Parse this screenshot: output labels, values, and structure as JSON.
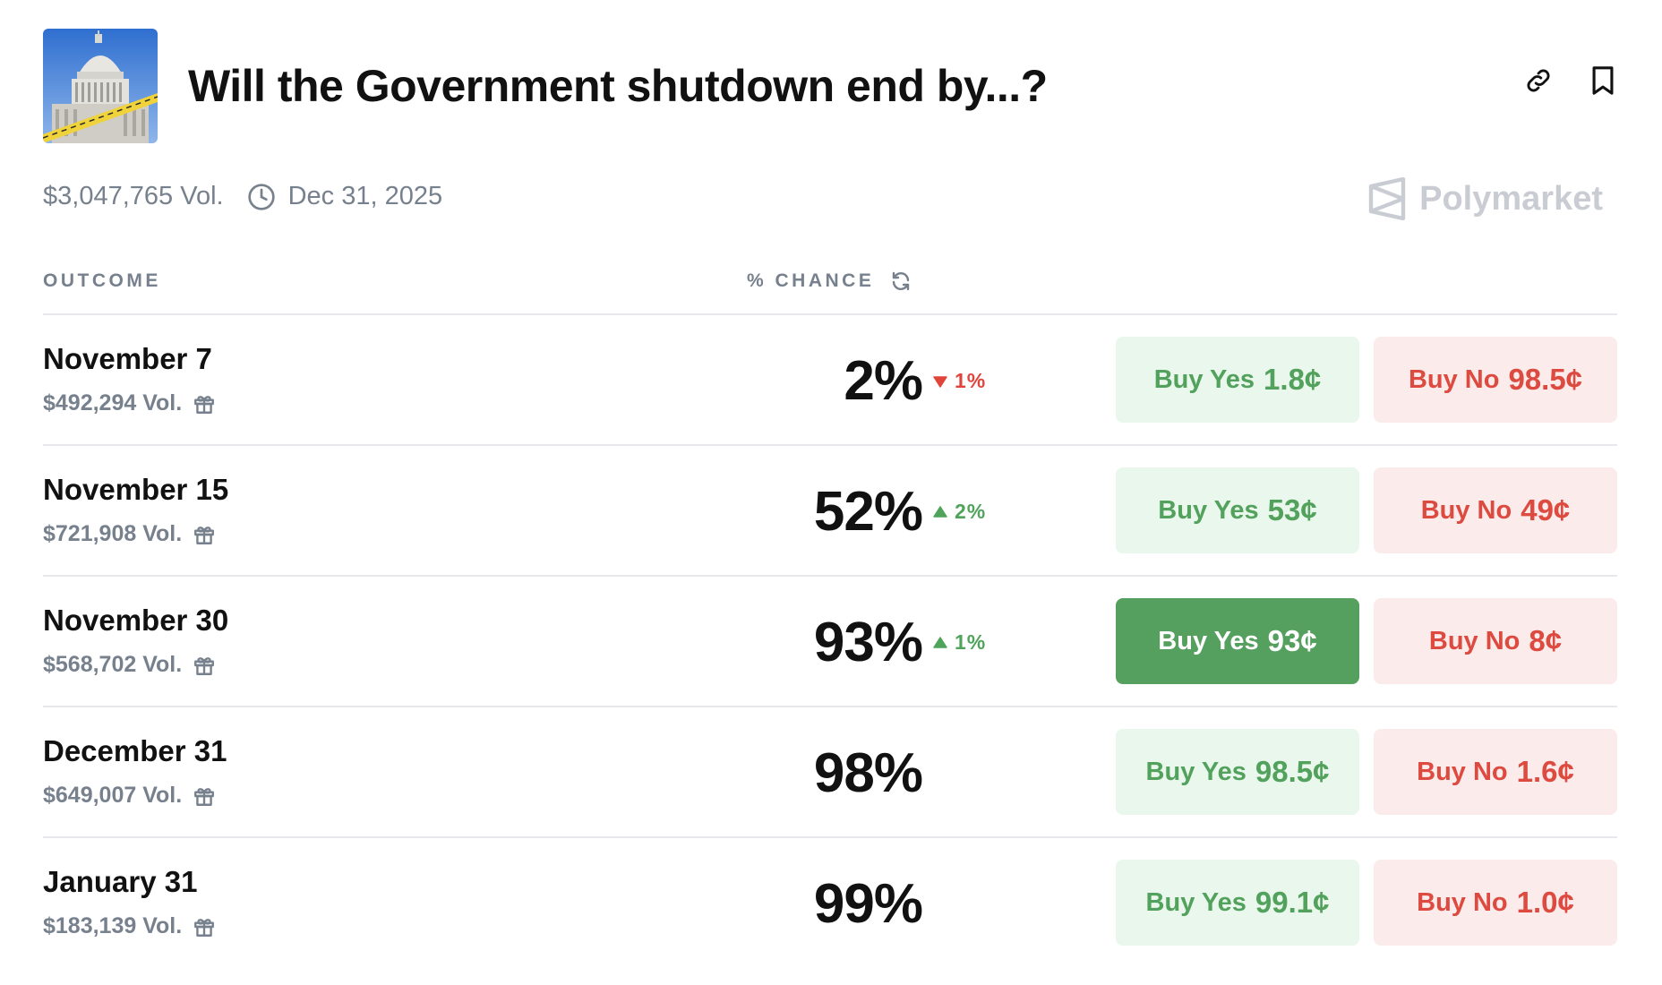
{
  "header": {
    "title": "Will the Government shutdown end by...?",
    "thumbnail_icon": "capitol-building-image",
    "link_icon": "link-icon",
    "bookmark_icon": "bookmark-icon"
  },
  "meta": {
    "volume": "$3,047,765 Vol.",
    "end_date": "Dec 31, 2025",
    "clock_icon": "clock-icon"
  },
  "brand": {
    "name": "Polymarket"
  },
  "table": {
    "col_outcome": "OUTCOME",
    "col_chance": "% CHANCE",
    "refresh_icon": "refresh-icon"
  },
  "colors": {
    "yes_text": "#52a15c",
    "yes_bg": "#e9f7ec",
    "yes_active_bg": "#55a05e",
    "no_text": "#dc4a40",
    "no_bg": "#fcebeb",
    "muted": "#77808d"
  },
  "rows": [
    {
      "name": "November 7",
      "volume": "$492,294 Vol.",
      "chance": "2%",
      "delta": "1%",
      "delta_dir": "down",
      "yes_label": "Buy Yes",
      "yes_price": "1.8¢",
      "no_label": "Buy No",
      "no_price": "98.5¢",
      "yes_active": false
    },
    {
      "name": "November 15",
      "volume": "$721,908 Vol.",
      "chance": "52%",
      "delta": "2%",
      "delta_dir": "up",
      "yes_label": "Buy Yes",
      "yes_price": "53¢",
      "no_label": "Buy No",
      "no_price": "49¢",
      "yes_active": false
    },
    {
      "name": "November 30",
      "volume": "$568,702 Vol.",
      "chance": "93%",
      "delta": "1%",
      "delta_dir": "up",
      "yes_label": "Buy Yes",
      "yes_price": "93¢",
      "no_label": "Buy No",
      "no_price": "8¢",
      "yes_active": true
    },
    {
      "name": "December 31",
      "volume": "$649,007 Vol.",
      "chance": "98%",
      "delta": "",
      "delta_dir": "none",
      "yes_label": "Buy Yes",
      "yes_price": "98.5¢",
      "no_label": "Buy No",
      "no_price": "1.6¢",
      "yes_active": false
    },
    {
      "name": "January 31",
      "volume": "$183,139 Vol.",
      "chance": "99%",
      "delta": "",
      "delta_dir": "none",
      "yes_label": "Buy Yes",
      "yes_price": "99.1¢",
      "no_label": "Buy No",
      "no_price": "1.0¢",
      "yes_active": false
    }
  ]
}
